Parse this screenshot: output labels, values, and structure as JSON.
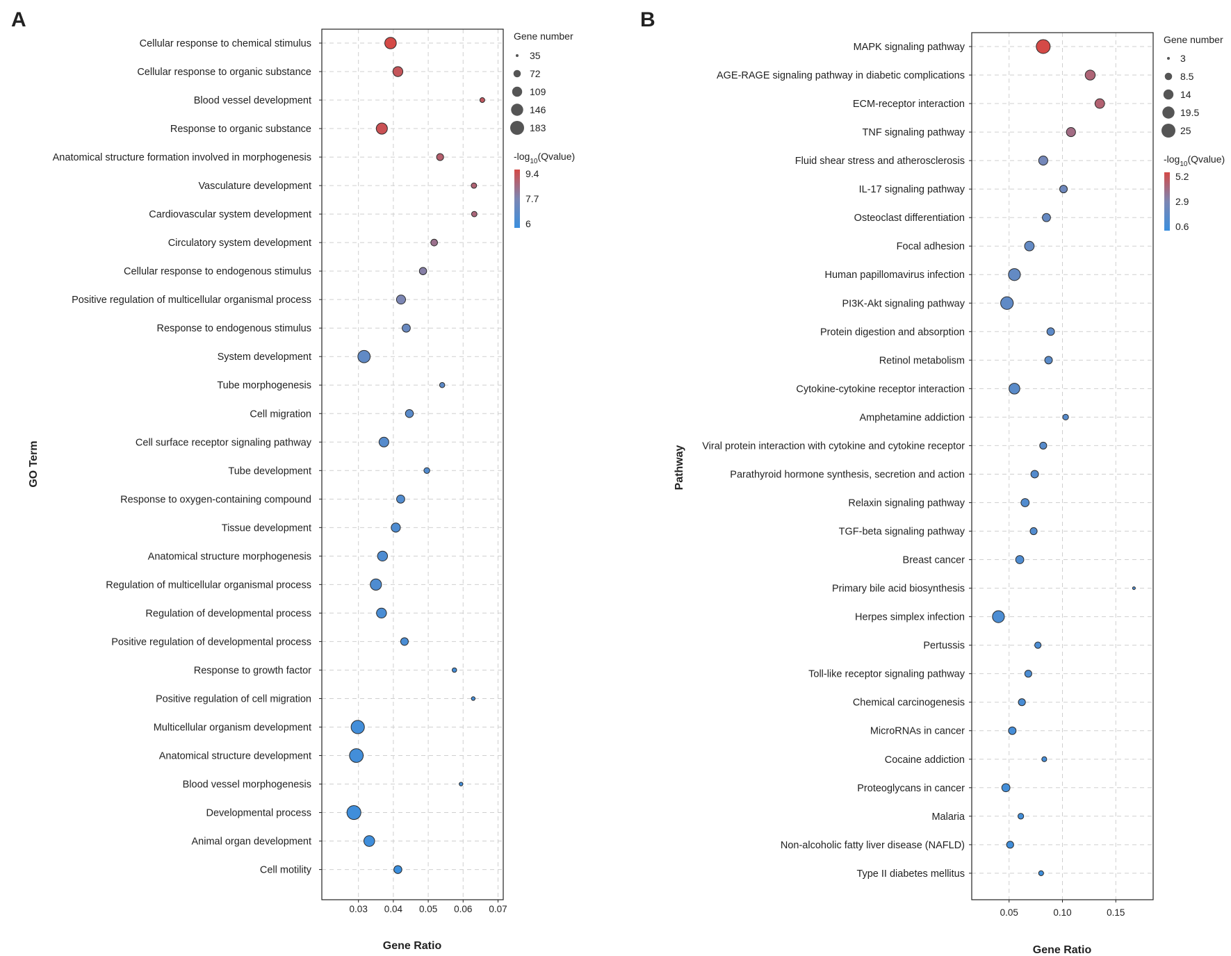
{
  "panels": {
    "A": {
      "letter": "A"
    },
    "B": {
      "letter": "B"
    }
  },
  "colors": {
    "high": "#d44a47",
    "low": "#3b8fde",
    "mid": "#7c86b3",
    "grid": "#cfcfcf",
    "point_stroke": "#2b2b2b"
  },
  "chart_data": [
    {
      "id": "A",
      "type": "scatter",
      "xlabel": "Gene Ratio",
      "ylabel": "GO Term",
      "xlim": [
        0.0195,
        0.0715
      ],
      "xticks": [
        0.03,
        0.04,
        0.05,
        0.06,
        0.07
      ],
      "xtick_labels": [
        "0.03",
        "0.04",
        "0.05",
        "0.06",
        "0.07"
      ],
      "size_legend": {
        "title": "Gene number",
        "values": [
          35,
          72,
          109,
          146,
          183
        ],
        "labels": [
          "35",
          "72",
          "109",
          "146",
          "183"
        ]
      },
      "color_legend": {
        "title_main": "-log",
        "title_sub": "10",
        "title_tail": "(Qvalue)",
        "min": 6,
        "max": 9.4,
        "ticks": [
          9.4,
          7.7,
          6
        ],
        "tick_labels": [
          "9.4",
          "7.7",
          "6"
        ]
      },
      "categories": [
        "Cellular response to chemical stimulus",
        "Cellular response to organic substance",
        "Blood vessel development",
        "Response to organic substance",
        "Anatomical structure formation involved in morphogenesis",
        "Vasculature development",
        "Cardiovascular system development",
        "Circulatory system development",
        "Cellular response to endogenous stimulus",
        "Positive regulation of multicellular organismal process",
        "Response to endogenous stimulus",
        "System development",
        "Tube morphogenesis",
        "Cell migration",
        "Cell surface receptor signaling pathway",
        "Tube development",
        "Response to oxygen-containing compound",
        "Tissue development",
        "Anatomical structure morphogenesis",
        "Regulation of multicellular organismal process",
        "Regulation of developmental process",
        "Positive regulation of developmental process",
        "Response to growth factor",
        "Positive regulation of cell migration",
        "Multicellular organism development",
        "Anatomical structure development",
        "Blood vessel morphogenesis",
        "Developmental process",
        "Animal organ development",
        "Cell motility"
      ],
      "gene_ratio": [
        0.0392,
        0.0413,
        0.0655,
        0.0367,
        0.0534,
        0.0631,
        0.0632,
        0.0517,
        0.0485,
        0.0422,
        0.0437,
        0.0316,
        0.054,
        0.0446,
        0.0373,
        0.0496,
        0.0421,
        0.0407,
        0.0369,
        0.035,
        0.0366,
        0.0432,
        0.0575,
        0.0629,
        0.0298,
        0.0294,
        0.0594,
        0.0287,
        0.0331,
        0.0413
      ],
      "gene_number": [
        135,
        108,
        48,
        128,
        68,
        52,
        52,
        65,
        72,
        95,
        82,
        150,
        50,
        80,
        105,
        56,
        82,
        96,
        108,
        130,
        108,
        76,
        45,
        40,
        170,
        180,
        40,
        185,
        122,
        80
      ],
      "neg_log10_q": [
        9.4,
        9.1,
        9.0,
        9.2,
        8.8,
        8.7,
        8.6,
        8.3,
        7.9,
        7.7,
        7.2,
        7.0,
        6.9,
        6.8,
        6.7,
        6.6,
        6.6,
        6.5,
        6.5,
        6.5,
        6.4,
        6.4,
        6.3,
        6.3,
        6.2,
        6.2,
        6.2,
        6.1,
        6.1,
        6.0
      ]
    },
    {
      "id": "B",
      "type": "scatter",
      "xlabel": "Gene Ratio",
      "ylabel": "Pathway",
      "xlim": [
        0.015,
        0.185
      ],
      "xticks": [
        0.05,
        0.1,
        0.15
      ],
      "xtick_labels": [
        "0.05",
        "0.10",
        "0.15"
      ],
      "size_legend": {
        "title": "Gene number",
        "values": [
          3,
          8.5,
          14,
          19.5,
          25
        ],
        "labels": [
          "3",
          "8.5",
          "14",
          "19.5",
          "25"
        ]
      },
      "color_legend": {
        "title_main": "-log",
        "title_sub": "10",
        "title_tail": "(Qvalue)",
        "min": 0.6,
        "max": 5.2,
        "ticks": [
          5.2,
          2.9,
          0.6
        ],
        "tick_labels": [
          "5.2",
          "2.9",
          "0.6"
        ]
      },
      "categories": [
        "MAPK signaling pathway",
        "AGE-RAGE signaling pathway in diabetic complications",
        "ECM-receptor interaction",
        "TNF signaling pathway",
        "Fluid shear stress and atherosclerosis",
        "IL-17 signaling pathway",
        "Osteoclast differentiation",
        "Focal adhesion",
        "Human papillomavirus infection",
        "PI3K-Akt signaling pathway",
        "Protein digestion and absorption",
        "Retinol metabolism",
        "Cytokine-cytokine receptor interaction",
        "Amphetamine addiction",
        "Viral protein interaction with cytokine and cytokine receptor",
        "Parathyroid hormone synthesis, secretion and action",
        "Relaxin signaling pathway",
        "TGF-beta signaling pathway",
        "Breast cancer",
        "Primary bile acid biosynthesis",
        "Herpes simplex infection",
        "Pertussis",
        "Toll-like receptor signaling pathway",
        "Chemical carcinogenesis",
        "MicroRNAs in cancer",
        "Cocaine addiction",
        "Proteoglycans in cancer",
        "Malaria",
        "Non-alcoholic fatty liver disease (NAFLD)",
        "Type II diabetes mellitus"
      ],
      "gene_ratio": [
        0.082,
        0.126,
        0.135,
        0.108,
        0.082,
        0.101,
        0.085,
        0.069,
        0.055,
        0.048,
        0.089,
        0.087,
        0.055,
        0.103,
        0.082,
        0.074,
        0.065,
        0.073,
        0.06,
        0.167,
        0.04,
        0.077,
        0.068,
        0.062,
        0.053,
        0.083,
        0.047,
        0.061,
        0.051,
        0.08
      ],
      "gene_number": [
        25,
        14,
        13,
        12,
        12,
        9,
        10,
        13,
        19,
        21,
        9,
        9,
        16,
        6,
        8,
        9,
        10,
        8,
        10,
        3,
        19,
        7,
        8,
        8,
        9,
        5,
        10,
        6,
        8,
        5
      ],
      "neg_log10_q": [
        5.2,
        4.2,
        4.3,
        3.9,
        2.6,
        2.4,
        2.1,
        2.0,
        2.0,
        1.9,
        1.8,
        1.7,
        1.7,
        1.6,
        1.6,
        1.5,
        1.4,
        1.4,
        1.3,
        1.3,
        1.2,
        1.2,
        1.2,
        1.1,
        1.0,
        1.0,
        0.9,
        0.9,
        0.8,
        0.7
      ]
    }
  ]
}
